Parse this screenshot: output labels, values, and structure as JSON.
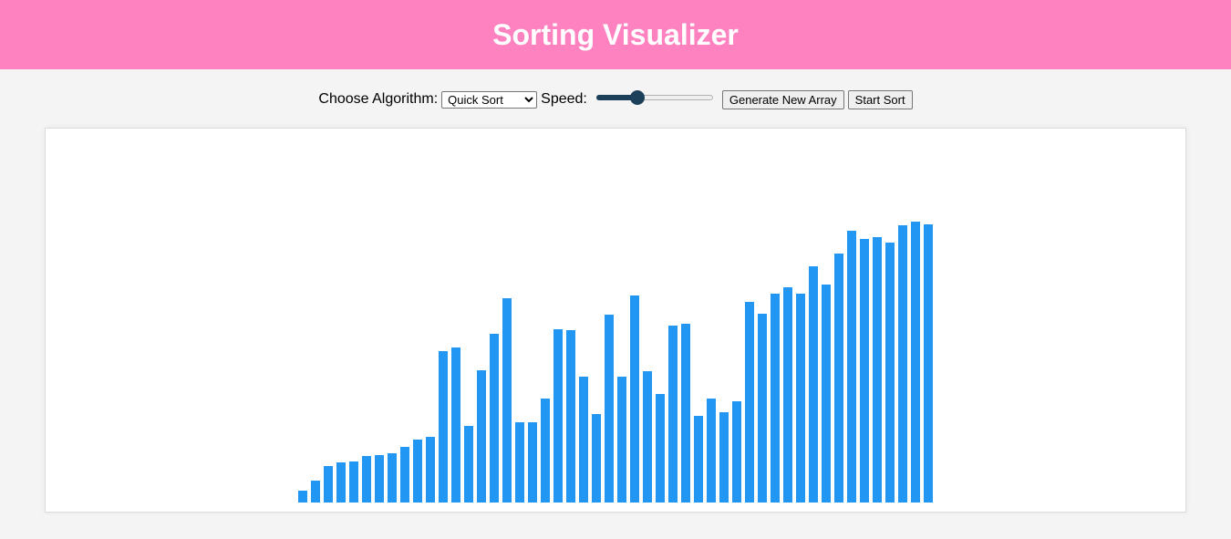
{
  "header": {
    "title": "Sorting Visualizer"
  },
  "controls": {
    "algorithm_label": "Choose Algorithm:",
    "algorithm_selected": "Quick Sort",
    "speed_label": "Speed:",
    "speed_value_fraction": 0.33,
    "generate_label": "Generate New Array",
    "start_label": "Start Sort"
  },
  "colors": {
    "header_bg": "#ff82c0",
    "bar": "#2196f3",
    "slider_accent": "#1c3f5a"
  },
  "chart_data": {
    "type": "bar",
    "values": [
      13,
      24,
      40,
      44,
      45,
      51,
      52,
      54,
      61,
      69,
      72,
      166,
      170,
      84,
      145,
      185,
      224,
      88,
      88,
      114,
      190,
      189,
      138,
      97,
      206,
      138,
      227,
      144,
      119,
      194,
      196,
      95,
      114,
      99,
      111,
      220,
      207,
      229,
      236,
      229,
      259,
      239,
      273,
      298,
      289,
      291,
      285,
      304,
      308,
      305
    ]
  }
}
